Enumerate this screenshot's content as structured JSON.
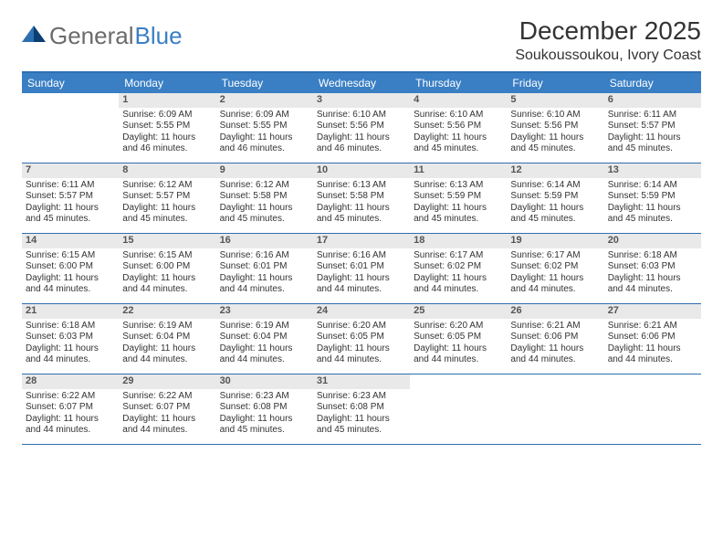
{
  "brand": {
    "part1": "General",
    "part2": "Blue"
  },
  "title": "December 2025",
  "location": "Soukoussoukou, Ivory Coast",
  "colors": {
    "header_blue": "#3a7fc4",
    "rule_blue": "#2e6fb0",
    "daynum_bg": "#e9e9e9",
    "text": "#333333"
  },
  "dow": [
    "Sunday",
    "Monday",
    "Tuesday",
    "Wednesday",
    "Thursday",
    "Friday",
    "Saturday"
  ],
  "weeks": [
    [
      {
        "n": "",
        "empty": true
      },
      {
        "n": "1",
        "sr": "Sunrise: 6:09 AM",
        "ss": "Sunset: 5:55 PM",
        "d1": "Daylight: 11 hours",
        "d2": "and 46 minutes."
      },
      {
        "n": "2",
        "sr": "Sunrise: 6:09 AM",
        "ss": "Sunset: 5:55 PM",
        "d1": "Daylight: 11 hours",
        "d2": "and 46 minutes."
      },
      {
        "n": "3",
        "sr": "Sunrise: 6:10 AM",
        "ss": "Sunset: 5:56 PM",
        "d1": "Daylight: 11 hours",
        "d2": "and 46 minutes."
      },
      {
        "n": "4",
        "sr": "Sunrise: 6:10 AM",
        "ss": "Sunset: 5:56 PM",
        "d1": "Daylight: 11 hours",
        "d2": "and 45 minutes."
      },
      {
        "n": "5",
        "sr": "Sunrise: 6:10 AM",
        "ss": "Sunset: 5:56 PM",
        "d1": "Daylight: 11 hours",
        "d2": "and 45 minutes."
      },
      {
        "n": "6",
        "sr": "Sunrise: 6:11 AM",
        "ss": "Sunset: 5:57 PM",
        "d1": "Daylight: 11 hours",
        "d2": "and 45 minutes."
      }
    ],
    [
      {
        "n": "7",
        "sr": "Sunrise: 6:11 AM",
        "ss": "Sunset: 5:57 PM",
        "d1": "Daylight: 11 hours",
        "d2": "and 45 minutes."
      },
      {
        "n": "8",
        "sr": "Sunrise: 6:12 AM",
        "ss": "Sunset: 5:57 PM",
        "d1": "Daylight: 11 hours",
        "d2": "and 45 minutes."
      },
      {
        "n": "9",
        "sr": "Sunrise: 6:12 AM",
        "ss": "Sunset: 5:58 PM",
        "d1": "Daylight: 11 hours",
        "d2": "and 45 minutes."
      },
      {
        "n": "10",
        "sr": "Sunrise: 6:13 AM",
        "ss": "Sunset: 5:58 PM",
        "d1": "Daylight: 11 hours",
        "d2": "and 45 minutes."
      },
      {
        "n": "11",
        "sr": "Sunrise: 6:13 AM",
        "ss": "Sunset: 5:59 PM",
        "d1": "Daylight: 11 hours",
        "d2": "and 45 minutes."
      },
      {
        "n": "12",
        "sr": "Sunrise: 6:14 AM",
        "ss": "Sunset: 5:59 PM",
        "d1": "Daylight: 11 hours",
        "d2": "and 45 minutes."
      },
      {
        "n": "13",
        "sr": "Sunrise: 6:14 AM",
        "ss": "Sunset: 5:59 PM",
        "d1": "Daylight: 11 hours",
        "d2": "and 45 minutes."
      }
    ],
    [
      {
        "n": "14",
        "sr": "Sunrise: 6:15 AM",
        "ss": "Sunset: 6:00 PM",
        "d1": "Daylight: 11 hours",
        "d2": "and 44 minutes."
      },
      {
        "n": "15",
        "sr": "Sunrise: 6:15 AM",
        "ss": "Sunset: 6:00 PM",
        "d1": "Daylight: 11 hours",
        "d2": "and 44 minutes."
      },
      {
        "n": "16",
        "sr": "Sunrise: 6:16 AM",
        "ss": "Sunset: 6:01 PM",
        "d1": "Daylight: 11 hours",
        "d2": "and 44 minutes."
      },
      {
        "n": "17",
        "sr": "Sunrise: 6:16 AM",
        "ss": "Sunset: 6:01 PM",
        "d1": "Daylight: 11 hours",
        "d2": "and 44 minutes."
      },
      {
        "n": "18",
        "sr": "Sunrise: 6:17 AM",
        "ss": "Sunset: 6:02 PM",
        "d1": "Daylight: 11 hours",
        "d2": "and 44 minutes."
      },
      {
        "n": "19",
        "sr": "Sunrise: 6:17 AM",
        "ss": "Sunset: 6:02 PM",
        "d1": "Daylight: 11 hours",
        "d2": "and 44 minutes."
      },
      {
        "n": "20",
        "sr": "Sunrise: 6:18 AM",
        "ss": "Sunset: 6:03 PM",
        "d1": "Daylight: 11 hours",
        "d2": "and 44 minutes."
      }
    ],
    [
      {
        "n": "21",
        "sr": "Sunrise: 6:18 AM",
        "ss": "Sunset: 6:03 PM",
        "d1": "Daylight: 11 hours",
        "d2": "and 44 minutes."
      },
      {
        "n": "22",
        "sr": "Sunrise: 6:19 AM",
        "ss": "Sunset: 6:04 PM",
        "d1": "Daylight: 11 hours",
        "d2": "and 44 minutes."
      },
      {
        "n": "23",
        "sr": "Sunrise: 6:19 AM",
        "ss": "Sunset: 6:04 PM",
        "d1": "Daylight: 11 hours",
        "d2": "and 44 minutes."
      },
      {
        "n": "24",
        "sr": "Sunrise: 6:20 AM",
        "ss": "Sunset: 6:05 PM",
        "d1": "Daylight: 11 hours",
        "d2": "and 44 minutes."
      },
      {
        "n": "25",
        "sr": "Sunrise: 6:20 AM",
        "ss": "Sunset: 6:05 PM",
        "d1": "Daylight: 11 hours",
        "d2": "and 44 minutes."
      },
      {
        "n": "26",
        "sr": "Sunrise: 6:21 AM",
        "ss": "Sunset: 6:06 PM",
        "d1": "Daylight: 11 hours",
        "d2": "and 44 minutes."
      },
      {
        "n": "27",
        "sr": "Sunrise: 6:21 AM",
        "ss": "Sunset: 6:06 PM",
        "d1": "Daylight: 11 hours",
        "d2": "and 44 minutes."
      }
    ],
    [
      {
        "n": "28",
        "sr": "Sunrise: 6:22 AM",
        "ss": "Sunset: 6:07 PM",
        "d1": "Daylight: 11 hours",
        "d2": "and 44 minutes."
      },
      {
        "n": "29",
        "sr": "Sunrise: 6:22 AM",
        "ss": "Sunset: 6:07 PM",
        "d1": "Daylight: 11 hours",
        "d2": "and 44 minutes."
      },
      {
        "n": "30",
        "sr": "Sunrise: 6:23 AM",
        "ss": "Sunset: 6:08 PM",
        "d1": "Daylight: 11 hours",
        "d2": "and 45 minutes."
      },
      {
        "n": "31",
        "sr": "Sunrise: 6:23 AM",
        "ss": "Sunset: 6:08 PM",
        "d1": "Daylight: 11 hours",
        "d2": "and 45 minutes."
      },
      {
        "n": "",
        "empty": true
      },
      {
        "n": "",
        "empty": true
      },
      {
        "n": "",
        "empty": true
      }
    ]
  ]
}
